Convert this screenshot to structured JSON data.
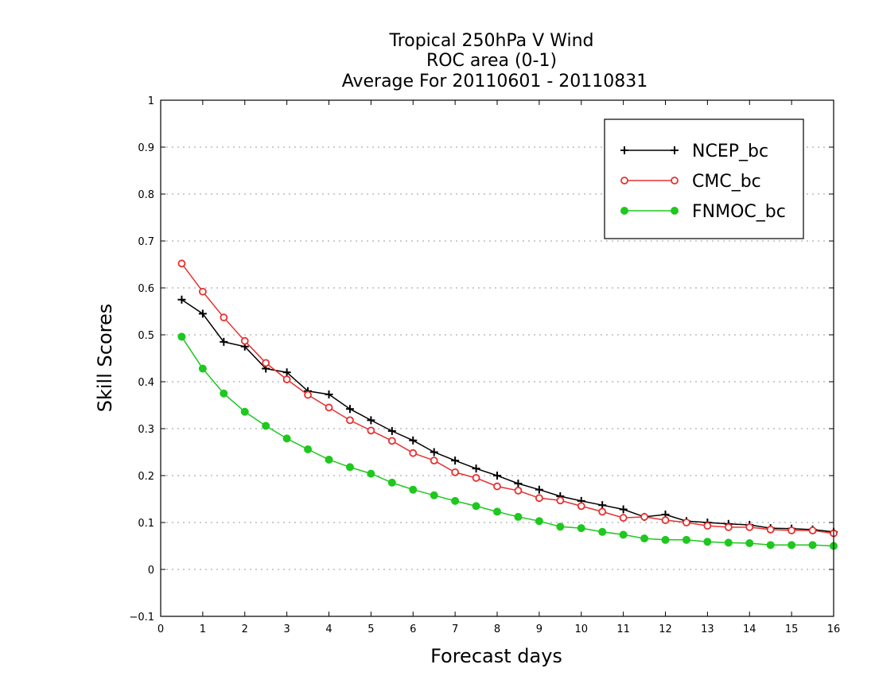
{
  "chart_data": {
    "type": "line",
    "title": [
      "Tropical 250hPa V Wind",
      "ROC area (0-1)",
      "Average For 20110601 - 20110831"
    ],
    "xlabel": "Forecast days",
    "ylabel": "Skill Scores",
    "xlim": [
      0,
      16
    ],
    "ylim": [
      -0.1,
      1
    ],
    "xticks": [
      "0",
      "1",
      "2",
      "3",
      "4",
      "5",
      "6",
      "7",
      "8",
      "9",
      "10",
      "11",
      "12",
      "13",
      "14",
      "15",
      "16"
    ],
    "yticks": [
      "−0.1",
      "0",
      "0.1",
      "0.2",
      "0.3",
      "0.4",
      "0.5",
      "0.6",
      "0.7",
      "0.8",
      "0.9",
      "1"
    ],
    "grid": true,
    "legend_position": "top-right",
    "x": [
      0.5,
      1,
      1.5,
      2,
      2.5,
      3,
      3.5,
      4,
      4.5,
      5,
      5.5,
      6,
      6.5,
      7,
      7.5,
      8,
      8.5,
      9,
      9.5,
      10,
      10.5,
      11,
      11.5,
      12,
      12.5,
      13,
      13.5,
      14,
      14.5,
      15,
      15.5,
      16
    ],
    "series": [
      {
        "name": "NCEP_bc",
        "color": "#000000",
        "marker": "plus",
        "values": [
          0.575,
          0.545,
          0.485,
          0.475,
          0.428,
          0.42,
          0.38,
          0.373,
          0.342,
          0.318,
          0.295,
          0.275,
          0.25,
          0.232,
          0.215,
          0.2,
          0.183,
          0.17,
          0.156,
          0.146,
          0.137,
          0.128,
          0.112,
          0.117,
          0.103,
          0.1,
          0.097,
          0.095,
          0.088,
          0.087,
          0.085,
          0.08
        ]
      },
      {
        "name": "CMC_bc",
        "color": "#e83030",
        "marker": "open-circle",
        "values": [
          0.652,
          0.592,
          0.537,
          0.487,
          0.44,
          0.405,
          0.372,
          0.345,
          0.318,
          0.296,
          0.274,
          0.248,
          0.232,
          0.207,
          0.195,
          0.177,
          0.168,
          0.152,
          0.147,
          0.135,
          0.123,
          0.11,
          0.112,
          0.105,
          0.1,
          0.093,
          0.09,
          0.09,
          0.085,
          0.083,
          0.083,
          0.077
        ]
      },
      {
        "name": "FNMOC_bc",
        "color": "#1ec81e",
        "marker": "filled-circle",
        "values": [
          0.496,
          0.428,
          0.375,
          0.336,
          0.306,
          0.279,
          0.256,
          0.234,
          0.218,
          0.204,
          0.185,
          0.17,
          0.158,
          0.146,
          0.135,
          0.123,
          0.112,
          0.103,
          0.091,
          0.088,
          0.08,
          0.074,
          0.066,
          0.063,
          0.063,
          0.059,
          0.057,
          0.056,
          0.052,
          0.052,
          0.052,
          0.05
        ]
      }
    ]
  }
}
